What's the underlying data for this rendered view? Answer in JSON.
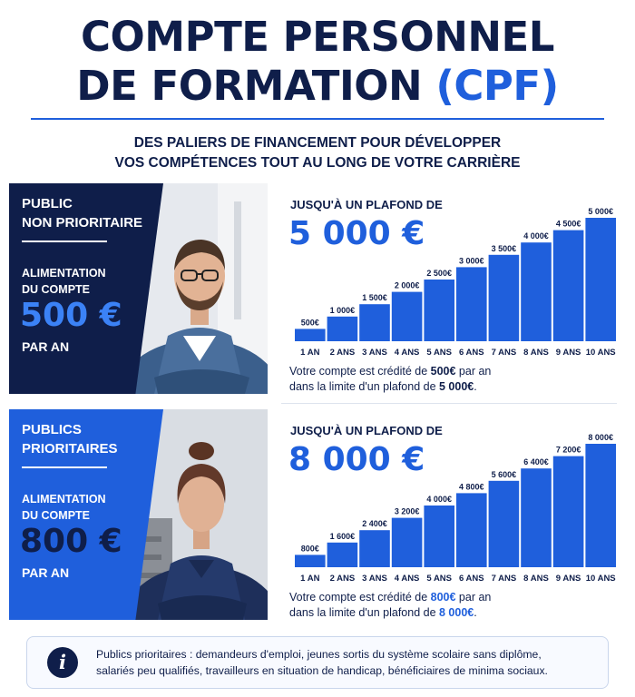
{
  "header": {
    "title_line1": "COMPTE PERSONNEL",
    "title_line2_main": "DE FORMATION",
    "title_line2_accent": "(CPF)",
    "subtitle_line1": "DES PALIERS DE FINANCEMENT POUR DÉVELOPPER",
    "subtitle_line2": "VOS COMPÉTENCES TOUT AU LONG DE VOTRE CARRIÈRE"
  },
  "sections": [
    {
      "public_line1": "PUBLIC",
      "public_line2": "NON PRIORITAIRE",
      "alim_line1": "ALIMENTATION",
      "alim_line2": "DU COMPTE",
      "amount": "500 €",
      "per_year": "PAR AN",
      "plafond_label": "JUSQU'À UN PLAFOND DE",
      "plafond_value": "5 000 €",
      "caption_pre": "Votre compte est crédité de ",
      "caption_amount": "500€",
      "caption_mid": " par an",
      "caption_line2_pre": "dans la limite d'un plafond de ",
      "caption_plafond": "5 000€",
      "caption_end": "."
    },
    {
      "public_line1": "PUBLICS",
      "public_line2": "PRIORITAIRES",
      "alim_line1": "ALIMENTATION",
      "alim_line2": "DU COMPTE",
      "amount": "800 €",
      "per_year": "PAR AN",
      "plafond_label": "JUSQU'À UN PLAFOND DE",
      "plafond_value": "8 000 €",
      "caption_pre": "Votre compte est crédité de ",
      "caption_amount": "800€",
      "caption_mid": " par an",
      "caption_line2_pre": "dans la limite d'un plafond de ",
      "caption_plafond": "8 000€",
      "caption_end": "."
    }
  ],
  "note": {
    "icon": "info-icon",
    "line1": "Publics prioritaires : demandeurs d'emploi, jeunes sortis du système scolaire sans diplôme,",
    "line2": "salariés peu qualifiés, travailleurs en situation de handicap, bénéficiaires de minima sociaux."
  },
  "colors": {
    "navy": "#0f1e4a",
    "blue": "#1f5fdc",
    "bar": "#1f5fdc"
  },
  "chart_data": [
    {
      "type": "bar",
      "categories": [
        "1 AN",
        "2 ANS",
        "3 ANS",
        "4 ANS",
        "5 ANS",
        "6 ANS",
        "7 ANS",
        "8 ANS",
        "9 ANS",
        "10 ANS"
      ],
      "values": [
        500,
        1000,
        1500,
        2000,
        2500,
        3000,
        3500,
        4000,
        4500,
        5000
      ],
      "value_labels": [
        "500€",
        "1 000€",
        "1 500€",
        "2 000€",
        "2 500€",
        "3 000€",
        "3 500€",
        "4 000€",
        "4 500€",
        "5 000€"
      ],
      "ylim": [
        0,
        5000
      ],
      "grid": false,
      "legend": "none"
    },
    {
      "type": "bar",
      "categories": [
        "1 AN",
        "2 ANS",
        "3 ANS",
        "4 ANS",
        "5 ANS",
        "6 ANS",
        "7 ANS",
        "8 ANS",
        "9 ANS",
        "10 ANS"
      ],
      "values": [
        800,
        1600,
        2400,
        3200,
        4000,
        4800,
        5600,
        6400,
        7200,
        8000
      ],
      "value_labels": [
        "800€",
        "1 600€",
        "2 400€",
        "3 200€",
        "4 000€",
        "4 800€",
        "5 600€",
        "6 400€",
        "7 200€",
        "8 000€"
      ],
      "ylim": [
        0,
        8000
      ],
      "grid": false,
      "legend": "none"
    }
  ]
}
